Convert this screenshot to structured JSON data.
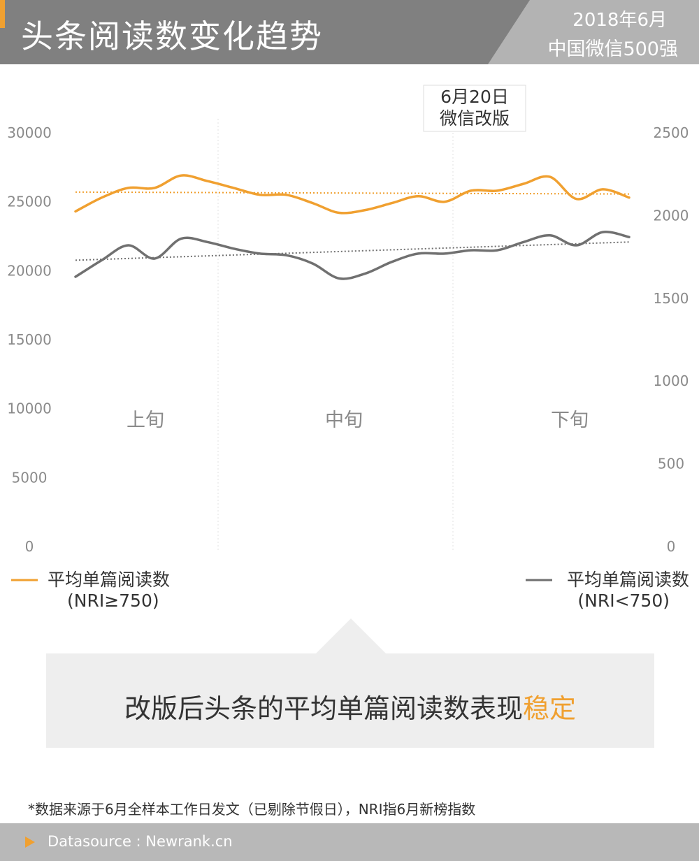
{
  "header": {
    "title": "头条阅读数变化趋势",
    "date": "2018年6月",
    "subtitle": "中国微信500强"
  },
  "chart_data": {
    "type": "line",
    "x": [
      0,
      1,
      2,
      3,
      4,
      5,
      6,
      7,
      8,
      9,
      10,
      11,
      12,
      13,
      14,
      15,
      16,
      17,
      18,
      19,
      20,
      21
    ],
    "period_labels": [
      "上旬",
      "中旬",
      "下旬"
    ],
    "left_axis": {
      "ticks": [
        "30000",
        "25000",
        "20000",
        "15000",
        "10000",
        "5000",
        "0"
      ],
      "ylim": [
        0,
        30000
      ]
    },
    "right_axis": {
      "ticks": [
        "2500",
        "2000",
        "1500",
        "1000",
        "500",
        "0"
      ],
      "ylim": [
        0,
        2500
      ]
    },
    "series": [
      {
        "name": "平均单篇阅读数",
        "name_sub": "(NRI≥750)",
        "axis": "left",
        "color": "#f0a030",
        "values": [
          24300,
          25300,
          26000,
          26000,
          26900,
          26500,
          26000,
          25500,
          25500,
          24900,
          24200,
          24400,
          24900,
          25400,
          25000,
          25800,
          25800,
          26300,
          26800,
          25200,
          25900,
          25300
        ],
        "trend": [
          25700,
          25560
        ]
      },
      {
        "name": "平均单篇阅读数",
        "name_sub": "(NRI<750)",
        "axis": "right",
        "color": "#707070",
        "values": [
          1630,
          1730,
          1820,
          1740,
          1860,
          1840,
          1800,
          1770,
          1760,
          1710,
          1620,
          1650,
          1720,
          1770,
          1770,
          1790,
          1790,
          1840,
          1880,
          1820,
          1900,
          1870
        ],
        "trend": [
          1730,
          1840
        ]
      }
    ],
    "annotation": {
      "x": 14,
      "line1": "6月20日",
      "line2": "微信改版"
    }
  },
  "callout": {
    "text_main": "改版后头条的平均单篇阅读数表现",
    "text_highlight": "稳定"
  },
  "footnote": "*数据来源于6月全样本工作日发文（已剔除节假日），NRI指6月新榜指数",
  "footer": {
    "label": "Datasource : Newrank.cn"
  }
}
